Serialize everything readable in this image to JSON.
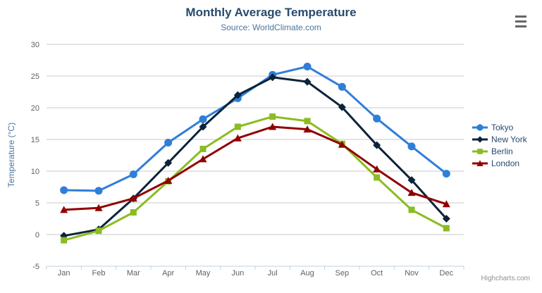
{
  "chart_data": {
    "type": "line",
    "title": "Monthly Average Temperature",
    "subtitle": "Source: WorldClimate.com",
    "xlabel": "",
    "ylabel": "Temperature (°C)",
    "ylim": [
      -5,
      30
    ],
    "ytick_interval": 5,
    "grid": true,
    "legend_position": "right",
    "categories": [
      "Jan",
      "Feb",
      "Mar",
      "Apr",
      "May",
      "Jun",
      "Jul",
      "Aug",
      "Sep",
      "Oct",
      "Nov",
      "Dec"
    ],
    "series": [
      {
        "name": "Tokyo",
        "color": "#2f7ed8",
        "marker": "circle",
        "values": [
          7.0,
          6.9,
          9.5,
          14.5,
          18.2,
          21.5,
          25.2,
          26.5,
          23.3,
          18.3,
          13.9,
          9.6
        ]
      },
      {
        "name": "New York",
        "color": "#0d233a",
        "marker": "diamond",
        "values": [
          -0.2,
          0.8,
          5.7,
          11.3,
          17.0,
          22.0,
          24.8,
          24.1,
          20.1,
          14.1,
          8.6,
          2.5
        ]
      },
      {
        "name": "Berlin",
        "color": "#8bbc21",
        "marker": "square",
        "values": [
          -0.9,
          0.6,
          3.5,
          8.4,
          13.5,
          17.0,
          18.6,
          17.9,
          14.3,
          9.0,
          3.9,
          1.0
        ]
      },
      {
        "name": "London",
        "color": "#910000",
        "marker": "triangle",
        "values": [
          3.9,
          4.2,
          5.7,
          8.5,
          11.9,
          15.2,
          17.0,
          16.6,
          14.2,
          10.3,
          6.6,
          4.8
        ]
      }
    ]
  },
  "credits": {
    "label": "Highcharts.com"
  },
  "colors": {
    "title": "#274b6d",
    "subtitle": "#4d759e",
    "axis_title": "#4d759e",
    "axis_label": "#606060",
    "grid": "#c8c8c8",
    "axis_line": "#c0d0e0",
    "legend_text": "#274b6d",
    "credits": "#909090",
    "menu_icon": "#666666",
    "background": "#ffffff"
  }
}
